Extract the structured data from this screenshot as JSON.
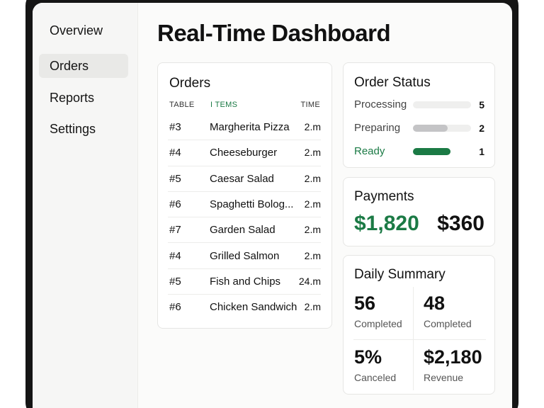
{
  "app": {
    "title": "Real-Time Dashboard"
  },
  "sidebar": {
    "items": [
      {
        "label": "Overview",
        "active": false
      },
      {
        "label": "Orders",
        "active": true
      },
      {
        "label": "Reports",
        "active": false
      },
      {
        "label": "Settings",
        "active": false
      }
    ]
  },
  "orders": {
    "title": "Orders",
    "columns": {
      "table": "TABLE",
      "items": "I TEMS",
      "time": "TIME"
    },
    "rows": [
      {
        "table": "#3",
        "item": "Margherita Pizza",
        "time": "2.m"
      },
      {
        "table": "#4",
        "item": "Cheeseburger",
        "time": "2.m"
      },
      {
        "table": "#5",
        "item": "Caesar Salad",
        "time": "2.m"
      },
      {
        "table": "#6",
        "item": "Spaghetti Bolog...",
        "time": "2.m"
      },
      {
        "table": "#7",
        "item": "Garden Salad",
        "time": "2.m"
      },
      {
        "table": "#4",
        "item": "Grilled Salmon",
        "time": "2.m"
      },
      {
        "table": "#5",
        "item": "Fish and Chips",
        "time": "24.m"
      },
      {
        "table": "#6",
        "item": "Chicken Sandwich",
        "time": "2.m"
      }
    ]
  },
  "order_status": {
    "title": "Order Status",
    "items": [
      {
        "label": "Processing",
        "count": "5",
        "fill_fraction": 0.0,
        "color": "#efefee"
      },
      {
        "label": "Preparing",
        "count": "2",
        "fill_fraction": 0.6,
        "color": "#c4c4c6"
      },
      {
        "label": "Ready",
        "count": "1",
        "fill_fraction": 0.65,
        "color": "#1b7a45"
      }
    ]
  },
  "payments": {
    "title": "Payments",
    "primary": "$1,820",
    "secondary": "$360"
  },
  "daily_summary": {
    "title": "Daily Summary",
    "stats": [
      {
        "value": "56",
        "label": "Completed"
      },
      {
        "value": "48",
        "label": "Completed"
      },
      {
        "value": "5%",
        "label": "Canceled"
      },
      {
        "value": "$2,180",
        "label": "Revenue"
      }
    ]
  },
  "colors": {
    "accent_green": "#1b7a45",
    "device_frame": "#151515"
  }
}
